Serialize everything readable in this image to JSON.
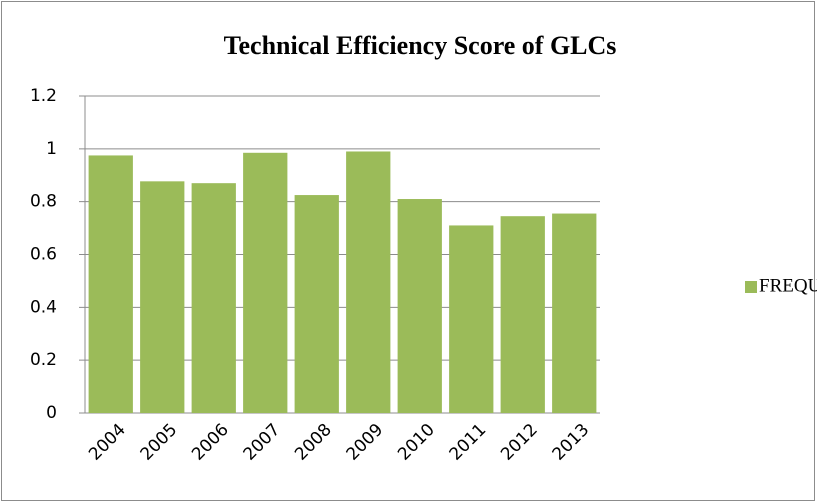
{
  "chart_data": {
    "type": "bar",
    "title": "Technical Efficiency Score of GLCs",
    "categories": [
      "2004",
      "2005",
      "2006",
      "2007",
      "2008",
      "2009",
      "2010",
      "2011",
      "2012",
      "2013"
    ],
    "series": [
      {
        "name": "FREQUENCY",
        "color": "#9bbb59",
        "values": [
          0.975,
          0.877,
          0.87,
          0.985,
          0.825,
          0.99,
          0.81,
          0.71,
          0.745,
          0.755
        ]
      }
    ],
    "ylim": [
      0,
      1.2
    ],
    "yticks": [
      0,
      0.2,
      0.4,
      0.6,
      0.8,
      1,
      1.2
    ],
    "grid": true,
    "legend": "right"
  }
}
